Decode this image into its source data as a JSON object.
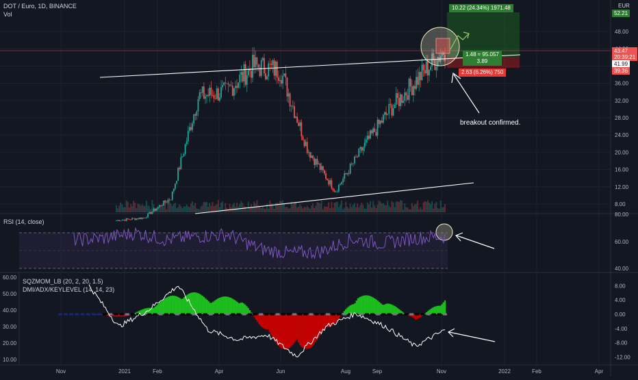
{
  "header": {
    "symbol": "DOT / Euro, 1D, BINANCE",
    "volume": "Vol",
    "rsi": "RSI (14, close)",
    "sqz": "SQZMOM_LB (20, 2, 20, 1.5)",
    "dmi": "DMI/ADX/KEYLEVEL (14, 14, 23)"
  },
  "currency": "EUR",
  "annotation": "breakout confirmed.",
  "position": {
    "target_label": "10.22 (24.34%) 1971.48",
    "ratio_label_1": "1.48 ≈ 95.057",
    "ratio_label_2": "3.89",
    "stop_label": "2.63 (6.26%) 750"
  },
  "price_tags": {
    "target": "52.21",
    "current": "43.47",
    "countdown": "20:39:21",
    "entry": "41.99",
    "stop": "39.36"
  },
  "colors": {
    "background": "#131722",
    "up": "#26a69a",
    "down": "#ef5350",
    "rsi_line": "#7e57c2",
    "sqz_up": "#1fce1f",
    "sqz_down": "#d50000",
    "adx_line": "#ffffff"
  },
  "chart_data": [
    {
      "type": "candlestick",
      "panel": "price",
      "y_axis_ticks": [
        "48.00",
        "44.00",
        "40.00",
        "36.00",
        "32.00",
        "28.00",
        "24.00",
        "20.00",
        "16.00",
        "12.00",
        "8.00"
      ],
      "x_axis_ticks": [
        "Nov",
        "2021",
        "Feb",
        "Apr",
        "Jun",
        "Aug",
        "Sep",
        "Nov",
        "2022",
        "Feb",
        "Apr"
      ],
      "x": [
        "2020-11",
        "2020-12",
        "2021-01",
        "2021-02",
        "2021-03",
        "2021-04",
        "2021-05",
        "2021-06",
        "2021-07",
        "2021-08",
        "2021-09",
        "2021-10",
        "2021-11"
      ],
      "close": [
        4.2,
        4.8,
        9.5,
        33.0,
        34.0,
        40.0,
        39.0,
        20.5,
        11.0,
        21.0,
        30.0,
        37.0,
        44.0
      ],
      "volume": "shown",
      "ylim": [
        6,
        53
      ]
    },
    {
      "type": "line",
      "panel": "rsi",
      "name": "RSI (14, close)",
      "y_axis_ticks": [
        "80.00",
        "60.00",
        "40.00"
      ],
      "values": [
        62,
        64,
        70,
        62,
        66,
        68,
        52,
        47,
        49,
        63,
        58,
        64,
        66
      ],
      "band": [
        30,
        70
      ],
      "ylim": [
        28,
        88
      ]
    },
    {
      "type": "histogram+line",
      "panel": "squeeze",
      "left_axis_ticks": [
        "60.00",
        "50.00",
        "40.00",
        "30.00",
        "20.00",
        "10.00"
      ],
      "right_axis_ticks": [
        "8.00",
        "4.00",
        "0.00",
        "-4.00",
        "-8.00",
        "-12.00"
      ],
      "momentum": [
        0,
        -1,
        3,
        7,
        5,
        5,
        -8,
        -12,
        -5,
        6,
        4,
        -2,
        5
      ],
      "adx": [
        55,
        30,
        40,
        55,
        28,
        22,
        25,
        12,
        30,
        38,
        30,
        18,
        28
      ]
    }
  ]
}
